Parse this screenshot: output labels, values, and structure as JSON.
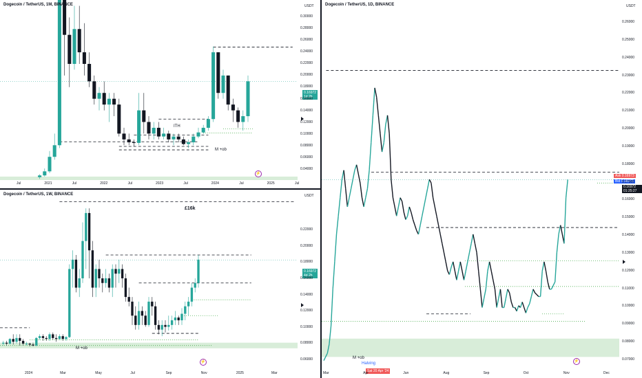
{
  "colors": {
    "up": "#26a69a",
    "down": "#131722",
    "price_line": "#26a69a",
    "ask": "#f05a5a",
    "bid": "#2962ff",
    "zone": "#c8e6c9",
    "purple": "#9c27b0"
  },
  "panel_tl": {
    "title": "Dogecoin / TetherUS, 1M, BINANCE",
    "unit": "USDT",
    "y_labels": [
      "0.30000",
      "0.28000",
      "0.26000",
      "0.24000",
      "0.22000",
      "0.20000",
      "0.18000",
      "0.16000",
      "0.14000",
      "0.12000",
      "0.10000",
      "0.08000",
      "0.06000",
      "0.04000"
    ],
    "x_labels": [
      "Jul",
      "2021",
      "Jul",
      "2022",
      "Jul",
      "2023",
      "Jul",
      "2024",
      "Jul",
      "2025",
      "Jul"
    ],
    "price_tag": "0.16972",
    "countdown": "1d 2h",
    "annotations": {
      "ith": "ITH",
      "mob": "M +ob"
    },
    "chart_data": {
      "type": "candlestick",
      "ylim": [
        0.0,
        0.31
      ],
      "x_range": [
        0,
        60
      ],
      "candles": [
        [
          8,
          0.005,
          0.008,
          0.002,
          0.01
        ],
        [
          9,
          0.008,
          0.015,
          0.006,
          0.02
        ],
        [
          10,
          0.015,
          0.04,
          0.012,
          0.05
        ],
        [
          11,
          0.04,
          0.06,
          0.035,
          0.08
        ],
        [
          12,
          0.06,
          0.32,
          0.055,
          0.32
        ],
        [
          13,
          0.32,
          0.25,
          0.18,
          0.32
        ],
        [
          14,
          0.25,
          0.2,
          0.16,
          0.28
        ],
        [
          15,
          0.2,
          0.26,
          0.19,
          0.3
        ],
        [
          16,
          0.26,
          0.22,
          0.2,
          0.3
        ],
        [
          17,
          0.22,
          0.2,
          0.18,
          0.27
        ],
        [
          18,
          0.2,
          0.17,
          0.16,
          0.22
        ],
        [
          19,
          0.17,
          0.14,
          0.13,
          0.18
        ],
        [
          20,
          0.14,
          0.15,
          0.12,
          0.16
        ],
        [
          21,
          0.15,
          0.13,
          0.12,
          0.17
        ],
        [
          22,
          0.13,
          0.14,
          0.1,
          0.15
        ],
        [
          23,
          0.14,
          0.13,
          0.11,
          0.15
        ],
        [
          24,
          0.13,
          0.08,
          0.075,
          0.14
        ],
        [
          25,
          0.08,
          0.07,
          0.06,
          0.09
        ],
        [
          26,
          0.07,
          0.065,
          0.06,
          0.08
        ],
        [
          27,
          0.065,
          0.064,
          0.058,
          0.07
        ],
        [
          28,
          0.064,
          0.12,
          0.06,
          0.15
        ],
        [
          29,
          0.12,
          0.1,
          0.08,
          0.15
        ],
        [
          30,
          0.1,
          0.08,
          0.07,
          0.11
        ],
        [
          31,
          0.08,
          0.09,
          0.07,
          0.1
        ],
        [
          32,
          0.09,
          0.075,
          0.07,
          0.1
        ],
        [
          33,
          0.075,
          0.08,
          0.07,
          0.09
        ],
        [
          34,
          0.08,
          0.07,
          0.065,
          0.085
        ],
        [
          35,
          0.07,
          0.075,
          0.06,
          0.08
        ],
        [
          36,
          0.075,
          0.07,
          0.065,
          0.08
        ],
        [
          37,
          0.07,
          0.062,
          0.06,
          0.075
        ],
        [
          38,
          0.062,
          0.065,
          0.055,
          0.07
        ],
        [
          39,
          0.065,
          0.075,
          0.06,
          0.08
        ],
        [
          40,
          0.075,
          0.082,
          0.072,
          0.09
        ],
        [
          41,
          0.082,
          0.09,
          0.08,
          0.095
        ],
        [
          42,
          0.09,
          0.105,
          0.085,
          0.11
        ],
        [
          43,
          0.105,
          0.22,
          0.1,
          0.23
        ],
        [
          44,
          0.22,
          0.15,
          0.14,
          0.22
        ],
        [
          45,
          0.15,
          0.18,
          0.14,
          0.19
        ],
        [
          46,
          0.18,
          0.13,
          0.12,
          0.18
        ],
        [
          47,
          0.13,
          0.12,
          0.1,
          0.14
        ],
        [
          48,
          0.12,
          0.1,
          0.09,
          0.125
        ],
        [
          49,
          0.1,
          0.11,
          0.085,
          0.12
        ],
        [
          50,
          0.11,
          0.17,
          0.1,
          0.18
        ]
      ],
      "levels": [
        {
          "y": 0.229,
          "x0": 43,
          "x1": 59,
          "style": "dashed"
        },
        {
          "y": 0.105,
          "x0": 32,
          "x1": 42,
          "style": "dashed"
        },
        {
          "y": 0.088,
          "x0": 45,
          "x1": 51,
          "style": "dotted"
        },
        {
          "y": 0.081,
          "x0": 41,
          "x1": 51,
          "style": "dotted"
        },
        {
          "y": 0.0775,
          "x0": 27,
          "x1": 42,
          "style": "dashed"
        },
        {
          "y": 0.066,
          "x0": 12,
          "x1": 40,
          "style": "dashed"
        },
        {
          "y": 0.058,
          "x0": 24,
          "x1": 42,
          "style": "dashed"
        },
        {
          "y": 0.052,
          "x0": 24,
          "x1": 42,
          "style": "dashed"
        }
      ],
      "zone": [
        0.0,
        0.006
      ],
      "current": 0.16972
    }
  },
  "panel_bl": {
    "title": "Dogecoin / TetherUS, 1W, BINANCE",
    "unit": "USDT",
    "headline": "£16k",
    "y_labels": [
      "0.22000",
      "0.20000",
      "0.18000",
      "0.16000",
      "0.14000",
      "0.12000",
      "0.10000",
      "0.08000",
      "0.06000"
    ],
    "x_labels": [
      "2024",
      "Mar",
      "May",
      "Jul",
      "Sep",
      "Nov",
      "2025",
      "Mar"
    ],
    "price_tag": "0.16972",
    "countdown": "4d 2h",
    "annotations": {
      "mob": "M +ob"
    },
    "chart_data": {
      "type": "candlestick",
      "ylim": [
        0.052,
        0.245
      ],
      "x_range": [
        0,
        90
      ],
      "candles": [
        [
          1,
          0.08,
          0.081,
          0.078,
          0.083
        ],
        [
          2,
          0.081,
          0.08,
          0.078,
          0.083
        ],
        [
          3,
          0.08,
          0.085,
          0.079,
          0.086
        ],
        [
          4,
          0.085,
          0.082,
          0.079,
          0.09
        ],
        [
          5,
          0.082,
          0.086,
          0.08,
          0.09
        ],
        [
          6,
          0.086,
          0.083,
          0.078,
          0.09
        ],
        [
          7,
          0.083,
          0.08,
          0.078,
          0.085
        ],
        [
          8,
          0.08,
          0.08,
          0.078,
          0.082
        ],
        [
          9,
          0.08,
          0.079,
          0.077,
          0.081
        ],
        [
          10,
          0.079,
          0.078,
          0.077,
          0.081
        ],
        [
          11,
          0.078,
          0.086,
          0.077,
          0.087
        ],
        [
          12,
          0.086,
          0.088,
          0.084,
          0.09
        ],
        [
          13,
          0.088,
          0.086,
          0.083,
          0.09
        ],
        [
          14,
          0.086,
          0.085,
          0.083,
          0.088
        ],
        [
          15,
          0.085,
          0.09,
          0.083,
          0.092
        ],
        [
          16,
          0.09,
          0.086,
          0.084,
          0.092
        ],
        [
          17,
          0.086,
          0.085,
          0.082,
          0.09
        ],
        [
          18,
          0.085,
          0.088,
          0.084,
          0.09
        ],
        [
          19,
          0.088,
          0.085,
          0.083,
          0.09
        ],
        [
          20,
          0.085,
          0.087,
          0.083,
          0.088
        ],
        [
          21,
          0.087,
          0.16,
          0.086,
          0.165
        ],
        [
          22,
          0.16,
          0.17,
          0.14,
          0.18
        ],
        [
          23,
          0.17,
          0.14,
          0.135,
          0.175
        ],
        [
          24,
          0.14,
          0.15,
          0.13,
          0.16
        ],
        [
          25,
          0.15,
          0.19,
          0.145,
          0.21
        ],
        [
          26,
          0.19,
          0.22,
          0.16,
          0.225
        ],
        [
          27,
          0.22,
          0.18,
          0.15,
          0.225
        ],
        [
          28,
          0.18,
          0.14,
          0.13,
          0.19
        ],
        [
          29,
          0.14,
          0.16,
          0.13,
          0.165
        ],
        [
          30,
          0.16,
          0.15,
          0.14,
          0.17
        ],
        [
          31,
          0.15,
          0.145,
          0.135,
          0.155
        ],
        [
          32,
          0.145,
          0.15,
          0.14,
          0.16
        ],
        [
          33,
          0.15,
          0.14,
          0.135,
          0.155
        ],
        [
          34,
          0.14,
          0.16,
          0.13,
          0.165
        ],
        [
          35,
          0.16,
          0.155,
          0.14,
          0.165
        ],
        [
          36,
          0.155,
          0.16,
          0.145,
          0.17
        ],
        [
          37,
          0.16,
          0.15,
          0.14,
          0.165
        ],
        [
          38,
          0.15,
          0.13,
          0.125,
          0.155
        ],
        [
          39,
          0.13,
          0.125,
          0.12,
          0.14
        ],
        [
          40,
          0.125,
          0.11,
          0.1,
          0.13
        ],
        [
          41,
          0.11,
          0.1,
          0.095,
          0.12
        ],
        [
          42,
          0.1,
          0.115,
          0.095,
          0.125
        ],
        [
          43,
          0.115,
          0.11,
          0.1,
          0.12
        ],
        [
          44,
          0.11,
          0.1,
          0.098,
          0.115
        ],
        [
          45,
          0.1,
          0.125,
          0.098,
          0.13
        ],
        [
          46,
          0.125,
          0.12,
          0.11,
          0.13
        ],
        [
          47,
          0.12,
          0.1,
          0.095,
          0.125
        ],
        [
          48,
          0.1,
          0.095,
          0.09,
          0.105
        ],
        [
          49,
          0.095,
          0.1,
          0.088,
          0.105
        ],
        [
          50,
          0.1,
          0.098,
          0.092,
          0.105
        ],
        [
          51,
          0.098,
          0.1,
          0.094,
          0.11
        ],
        [
          52,
          0.1,
          0.105,
          0.095,
          0.11
        ],
        [
          53,
          0.105,
          0.108,
          0.1,
          0.115
        ],
        [
          54,
          0.108,
          0.105,
          0.1,
          0.11
        ],
        [
          55,
          0.105,
          0.112,
          0.1,
          0.118
        ],
        [
          56,
          0.112,
          0.12,
          0.105,
          0.125
        ],
        [
          57,
          0.12,
          0.125,
          0.11,
          0.13
        ],
        [
          58,
          0.125,
          0.14,
          0.12,
          0.145
        ],
        [
          59,
          0.14,
          0.145,
          0.135,
          0.15
        ],
        [
          60,
          0.145,
          0.17,
          0.14,
          0.175
        ]
      ],
      "levels": [
        {
          "y": 0.232,
          "x0": 18,
          "x1": 89,
          "style": "dashed"
        },
        {
          "y": 0.175,
          "x0": 32,
          "x1": 76,
          "style": "dashed"
        },
        {
          "y": 0.145,
          "x0": 42,
          "x1": 76,
          "style": "dashed"
        },
        {
          "y": 0.127,
          "x0": 58,
          "x1": 76,
          "style": "dotted"
        },
        {
          "y": 0.11,
          "x0": 55,
          "x1": 66,
          "style": "dotted"
        },
        {
          "y": 0.097,
          "x0": 0,
          "x1": 9,
          "style": "dashed"
        },
        {
          "y": 0.091,
          "x0": 46,
          "x1": 60,
          "style": "dashed"
        },
        {
          "y": 0.084,
          "x0": 9,
          "x1": 60,
          "style": "dotted"
        },
        {
          "y": 0.078,
          "x0": 0,
          "x1": 64,
          "style": "dotted"
        }
      ],
      "zone": [
        0.075,
        0.081
      ],
      "current": 0.16972
    }
  },
  "panel_r": {
    "title": "Dogecoin / TetherUS, 1D, BINANCE",
    "unit": "USDT",
    "y_labels": [
      "0.26000",
      "0.25000",
      "0.24000",
      "0.23000",
      "0.22000",
      "0.21000",
      "0.20000",
      "0.19000",
      "0.18000",
      "0.17000",
      "0.16000",
      "0.15000",
      "0.14000",
      "0.13000",
      "0.12000",
      "0.11000",
      "0.10000",
      "0.09000",
      "0.08000",
      "0.07000"
    ],
    "x_labels": [
      "Mar",
      "Apr",
      "Jun",
      "Aug",
      "Sep",
      "Oct",
      "Nov",
      "Dec"
    ],
    "date_tag": "Sat 20 Apr '24",
    "ask_label": "Ask",
    "ask_price": "0.16973",
    "bid_label": "Bid",
    "bid_price": "0.16972",
    "last_price": "0.16972",
    "countdown": "01:25:27",
    "annotations": {
      "mob": "M +ob",
      "halving": "Halving"
    },
    "chart_data": {
      "type": "line",
      "ylim": [
        0.066,
        0.268
      ],
      "x_range": [
        0,
        270
      ],
      "series": [
        {
          "values": [
            0.071,
            0.073,
            0.075,
            0.08,
            0.09,
            0.11,
            0.125,
            0.14,
            0.15,
            0.16,
            0.17,
            0.175,
            0.165,
            0.155,
            0.16,
            0.165,
            0.17,
            0.175,
            0.178,
            0.173,
            0.168,
            0.16,
            0.155,
            0.16,
            0.165,
            0.175,
            0.19,
            0.205,
            0.22,
            0.215,
            0.205,
            0.195,
            0.185,
            0.19,
            0.2,
            0.205,
            0.195,
            0.17,
            0.16,
            0.155,
            0.15,
            0.155,
            0.16,
            0.158,
            0.152,
            0.148,
            0.15,
            0.155,
            0.152,
            0.148,
            0.145,
            0.142,
            0.14,
            0.145,
            0.15,
            0.155,
            0.16,
            0.165,
            0.17,
            0.168,
            0.16,
            0.155,
            0.15,
            0.145,
            0.14,
            0.135,
            0.13,
            0.125,
            0.12,
            0.118,
            0.122,
            0.125,
            0.12,
            0.115,
            0.12,
            0.125,
            0.12,
            0.115,
            0.12,
            0.125,
            0.13,
            0.135,
            0.14,
            0.135,
            0.13,
            0.12,
            0.11,
            0.1,
            0.105,
            0.11,
            0.12,
            0.125,
            0.12,
            0.115,
            0.11,
            0.1,
            0.105,
            0.11,
            0.1,
            0.1,
            0.105,
            0.11,
            0.108,
            0.103,
            0.1,
            0.1,
            0.098,
            0.101,
            0.1,
            0.103,
            0.1,
            0.097,
            0.1,
            0.102,
            0.106,
            0.11,
            0.108,
            0.107,
            0.106,
            0.106,
            0.12,
            0.125,
            0.12,
            0.114,
            0.11,
            0.11,
            0.112,
            0.114,
            0.13,
            0.14,
            0.145,
            0.14,
            0.135,
            0.16,
            0.17
          ]
        }
      ],
      "levels": [
        {
          "y": 0.2295,
          "x0": 4,
          "x1": 270,
          "style": "dashed"
        },
        {
          "y": 0.174,
          "x0": 45,
          "x1": 270,
          "style": "dashed"
        },
        {
          "y": 0.1437,
          "x0": 95,
          "x1": 270,
          "style": "dashed"
        },
        {
          "y": 0.1255,
          "x0": 130,
          "x1": 270,
          "style": "dotted"
        },
        {
          "y": 0.1115,
          "x0": 130,
          "x1": 270,
          "style": "dotted"
        },
        {
          "y": 0.0965,
          "x0": 95,
          "x1": 135,
          "style": "dashed"
        },
        {
          "y": 0.0965,
          "x0": 200,
          "x1": 220,
          "style": "dotted"
        },
        {
          "y": 0.0925,
          "x0": 0,
          "x1": 240,
          "style": "dotted"
        },
        {
          "y": 0.168,
          "x0": 250,
          "x1": 270,
          "style": "dotted"
        }
      ],
      "zone": [
        0.073,
        0.083
      ],
      "current": 0.16972
    }
  }
}
